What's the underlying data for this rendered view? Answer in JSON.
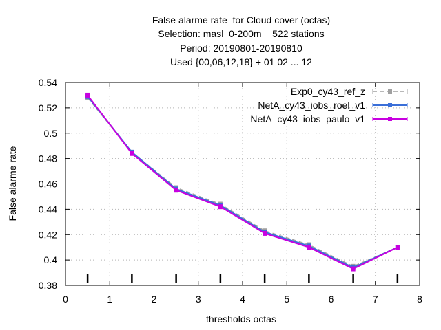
{
  "chart_data": {
    "type": "line",
    "title_lines": [
      "False alarme rate  for Cloud cover (octas)",
      "Selection: masl_0-200m    522 stations",
      "Period: 20190801-20190810",
      "Used {00,06,12,18} + 01 02 ... 12"
    ],
    "xlabel": "thresholds octas",
    "ylabel": "False alarme rate",
    "xlim": [
      0,
      8
    ],
    "ylim": [
      0.38,
      0.54
    ],
    "xticks": [
      "0",
      "1",
      "2",
      "3",
      "4",
      "5",
      "6",
      "7",
      "8"
    ],
    "yticks": [
      "0.38",
      "0.4",
      "0.42",
      "0.44",
      "0.46",
      "0.48",
      "0.5",
      "0.52",
      "0.54"
    ],
    "grid": true,
    "legend_position": "top-right",
    "x": [
      0.5,
      1.5,
      2.5,
      3.5,
      4.5,
      5.5,
      6.5,
      7.5
    ],
    "series": [
      {
        "name": "Exp0_cy43_ref_z",
        "color": "#a0a0a0",
        "values": [
          0.528,
          0.485,
          0.457,
          0.444,
          0.423,
          0.412,
          0.395,
          0.41
        ]
      },
      {
        "name": "NetA_cy43_iobs_roel_v1",
        "color": "#3a6fd8",
        "values": [
          0.529,
          0.485,
          0.456,
          0.443,
          0.422,
          0.411,
          0.394,
          0.41
        ]
      },
      {
        "name": "NetA_cy43_iobs_paulo_v1",
        "color": "#c800e0",
        "values": [
          0.53,
          0.484,
          0.455,
          0.442,
          0.421,
          0.41,
          0.393,
          0.41
        ]
      }
    ]
  }
}
